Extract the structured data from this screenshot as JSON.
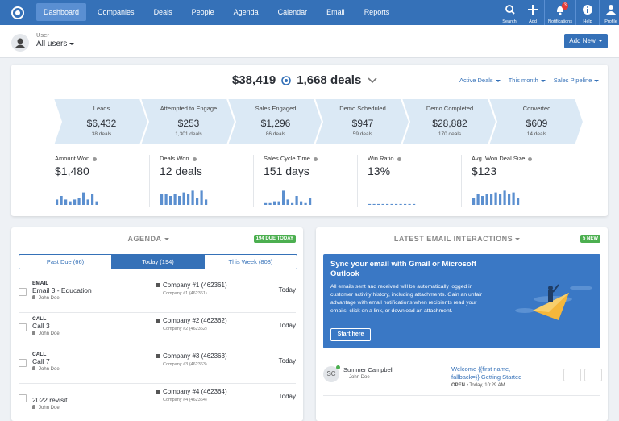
{
  "nav": {
    "items": [
      "Dashboard",
      "Companies",
      "Deals",
      "People",
      "Agenda",
      "Calendar",
      "Email",
      "Reports"
    ],
    "active": 0,
    "actions": [
      {
        "label": "Search"
      },
      {
        "label": "Add"
      },
      {
        "label": "Notifications",
        "badge": 3
      },
      {
        "label": "Help"
      },
      {
        "label": "Profile"
      }
    ]
  },
  "toolbar": {
    "label": "User",
    "value": "All users",
    "button": "Add New"
  },
  "summary": {
    "amount": "$38,419",
    "deals": "1,668 deals",
    "filters": [
      "Active Deals",
      "This month",
      "Sales Pipeline"
    ]
  },
  "pipeline": [
    {
      "name": "Leads",
      "amount": "$6,432",
      "deals": "38 deals"
    },
    {
      "name": "Attempted to Engage",
      "amount": "$253",
      "deals": "1,301 deals"
    },
    {
      "name": "Sales Engaged",
      "amount": "$1,296",
      "deals": "86 deals"
    },
    {
      "name": "Demo Scheduled",
      "amount": "$947",
      "deals": "59 deals"
    },
    {
      "name": "Demo Completed",
      "amount": "$28,882",
      "deals": "170 deals"
    },
    {
      "name": "Converted",
      "amount": "$609",
      "deals": "14 deals"
    }
  ],
  "kpis": [
    {
      "label": "Amount Won",
      "value": "$1,480",
      "bars": [
        3,
        5,
        3,
        2,
        3,
        4,
        7,
        3,
        6,
        2
      ]
    },
    {
      "label": "Deals Won",
      "value": "12 deals",
      "bars": [
        6,
        6,
        5,
        6,
        5,
        7,
        6,
        8,
        4,
        8,
        3
      ]
    },
    {
      "label": "Sales Cycle Time",
      "value": "151 days",
      "bars": [
        1,
        1,
        2,
        2,
        8,
        3,
        1,
        5,
        2,
        1,
        4
      ]
    },
    {
      "label": "Win Ratio",
      "value": "13%",
      "bars": [
        0.5,
        0.5,
        0.5,
        0.5,
        0.5,
        0.5,
        0.5,
        0.5,
        0.5,
        0.5,
        0.5
      ]
    },
    {
      "label": "Avg. Won Deal Size",
      "value": "$123",
      "bars": [
        4,
        6,
        5,
        6,
        6,
        7,
        6,
        8,
        6,
        7,
        4
      ]
    }
  ],
  "agenda": {
    "title": "AGENDA",
    "badge": "194 DUE TODAY",
    "tabs": [
      "Past Due (66)",
      "Today (194)",
      "This Week (808)"
    ],
    "active_tab": 1,
    "rows": [
      {
        "type": "EMAIL",
        "title": "Email 3 - Education",
        "owner": "John Doe",
        "company": "Company #1 (462361)",
        "company_sub": "Company #1 (462361)",
        "due": "Today"
      },
      {
        "type": "CALL",
        "title": "Call 3",
        "owner": "John Doe",
        "company": "Company #2 (462362)",
        "company_sub": "Company #2 (462362)",
        "due": "Today"
      },
      {
        "type": "CALL",
        "title": "Call 7",
        "owner": "John Doe",
        "company": "Company #3 (462363)",
        "company_sub": "Company #3 (462363)",
        "due": "Today"
      },
      {
        "title": "2022 revisit",
        "owner": "John Doe",
        "company": "Company #4 (462364)",
        "company_sub": "Company #4 (462364)",
        "due": "Today"
      }
    ]
  },
  "email": {
    "title": "LATEST EMAIL INTERACTIONS",
    "badge": "5 NEW",
    "promo": {
      "title": "Sync your email with Gmail or Microsoft Outlook",
      "body": "All emails sent and received will be automatically logged in customer activity history, including attachments. Gain an unfair advantage with email notifications when recipients read your emails, click on a link, or download an attachment.",
      "button": "Start here"
    },
    "items": [
      {
        "initials": "SC",
        "name": "Summer Campbell",
        "owner": "John Doe",
        "subject": "Welcome {{first name, fallback=}} Getting Started",
        "status": "OPEN",
        "time": "• Today, 10:29 AM"
      }
    ]
  }
}
